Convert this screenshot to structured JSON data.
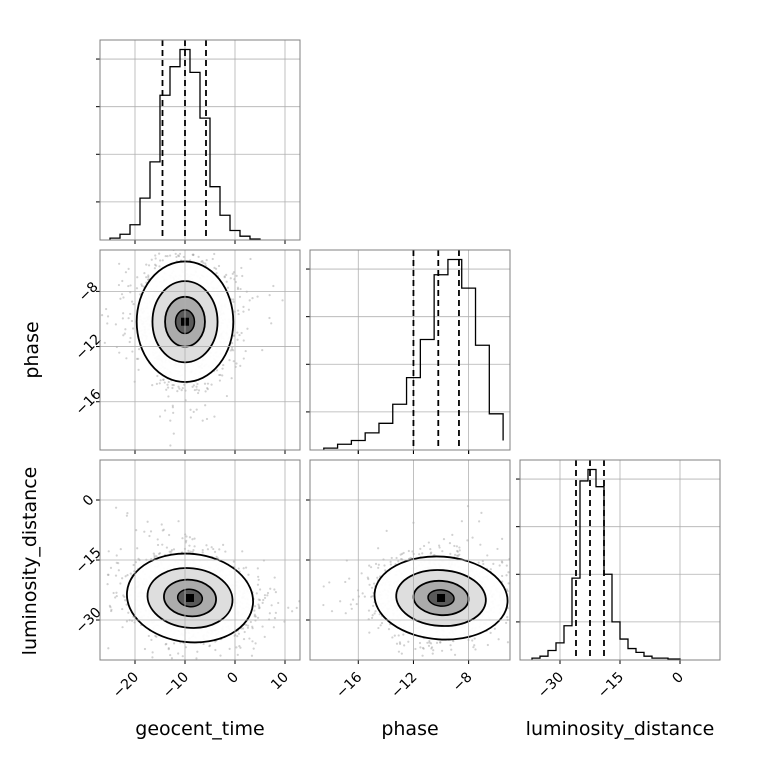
{
  "chart_data": {
    "type": "corner",
    "parameters": [
      "geocent_time",
      "phase",
      "luminosity_distance"
    ],
    "quantile_lines": {
      "geocent_time": [
        -14.5,
        -10.0,
        -5.8
      ],
      "phase": [
        -12.0,
        -10.2,
        -8.7
      ],
      "luminosity_distance": [
        -26.0,
        -22.5,
        -19.0
      ]
    },
    "histograms": [
      {
        "parameter": "geocent_time",
        "xlim": [
          -27.0,
          13.0
        ],
        "bin_edges": [
          -25,
          -23,
          -21,
          -19,
          -17,
          -15,
          -13,
          -11,
          -9,
          -7,
          -5,
          -3,
          -1,
          1,
          3,
          5
        ],
        "counts": [
          0.01,
          0.03,
          0.08,
          0.22,
          0.41,
          0.76,
          0.91,
          1.0,
          0.88,
          0.64,
          0.28,
          0.13,
          0.05,
          0.02,
          0.005
        ]
      },
      {
        "parameter": "phase",
        "xlim": [
          -19.5,
          -5.0
        ],
        "bin_edges": [
          -18.5,
          -17.5,
          -16.5,
          -15.5,
          -14.5,
          -13.5,
          -12.5,
          -11.5,
          -10.5,
          -9.5,
          -8.5,
          -7.5,
          -6.5,
          -5.5
        ],
        "counts": [
          0.01,
          0.03,
          0.05,
          0.09,
          0.14,
          0.24,
          0.38,
          0.58,
          0.92,
          1.0,
          0.85,
          0.55,
          0.19,
          0.05
        ]
      },
      {
        "parameter": "luminosity_distance",
        "xlim": [
          -40.0,
          10.0
        ],
        "bin_edges": [
          -37,
          -35,
          -33,
          -31,
          -29,
          -27,
          -25,
          -23,
          -21,
          -19,
          -17,
          -15,
          -13,
          -11,
          -9,
          -7,
          -5,
          -3,
          0
        ],
        "counts": [
          0.01,
          0.02,
          0.05,
          0.09,
          0.18,
          0.43,
          0.94,
          1.0,
          0.91,
          0.45,
          0.2,
          0.11,
          0.06,
          0.04,
          0.02,
          0.01,
          0.01,
          0.005
        ]
      }
    ],
    "panels_2d": [
      {
        "x": "geocent_time",
        "y": "phase",
        "xlim": [
          -27.0,
          13.0
        ],
        "ylim": [
          -19.5,
          -5.0
        ],
        "peak": [
          -10.0,
          -10.2
        ],
        "sigma": [
          4.2,
          1.9
        ],
        "rho": 0.0
      },
      {
        "x": "geocent_time",
        "y": "luminosity_distance",
        "xlim": [
          -27.0,
          13.0
        ],
        "ylim": [
          -40.0,
          10.0
        ],
        "peak": [
          -9.0,
          -24.5
        ],
        "sigma": [
          5.5,
          4.8
        ],
        "rho": -0.15
      },
      {
        "x": "phase",
        "y": "luminosity_distance",
        "xlim": [
          -19.5,
          -5.0
        ],
        "ylim": [
          -40.0,
          10.0
        ],
        "peak": [
          -10.0,
          -24.5
        ],
        "sigma": [
          2.1,
          4.5
        ],
        "rho": -0.1
      }
    ],
    "ticks": {
      "geocent_time": [
        -20,
        -10,
        0,
        10
      ],
      "phase": [
        -16,
        -12,
        -8
      ],
      "luminosity_distance": [
        -30,
        -15,
        0
      ]
    },
    "tick_labels": {
      "geocent_time": [
        "−20",
        "−10",
        "0",
        "10"
      ],
      "phase": [
        "−16",
        "−12",
        "−8"
      ],
      "luminosity_distance": [
        "−30",
        "−15",
        "0"
      ]
    },
    "grid": true
  },
  "labels": {
    "x_geocent_time": "geocent_time",
    "x_phase": "phase",
    "x_luminosity_distance": "luminosity_distance",
    "y_phase": "phase",
    "y_luminosity_distance": "luminosity_distance"
  },
  "colors": {
    "line": "#000000",
    "grid": "#b0b0b0",
    "frame": "#808080",
    "points": "#9a9a9a"
  }
}
